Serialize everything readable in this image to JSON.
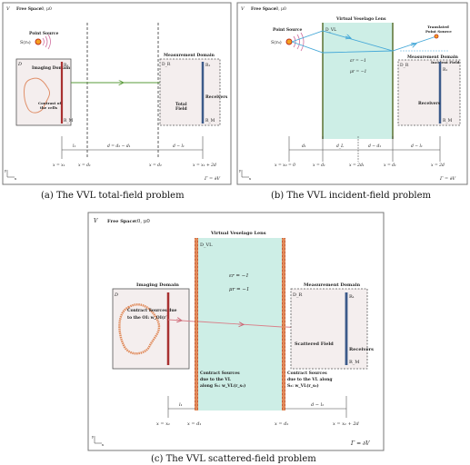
{
  "panel_a": {
    "V": "V",
    "free_space": "Free Space",
    "medium": "ε0, μ0",
    "point_source_title": "Point Source",
    "point_source_label": "S(r₀)",
    "D": "D",
    "imaging_domain": "Imaging Domain",
    "contrast_1": "Contrast of",
    "contrast_2": "the cells",
    "r1": "R₁",
    "rM": "R_M",
    "DR": "D_R",
    "total_1": "Total",
    "total_2": "Field",
    "measurement_domain": "Measurement Domain",
    "R1b": "R₁",
    "receivers": "Receivers",
    "RMb": "R_M",
    "l1": "l₁",
    "d_expr": "d = d₂ − d₁",
    "dl_expr": "d − l₁",
    "x1": "x = x₁",
    "xd1": "x = d₁",
    "xd2": "x = d₂",
    "xx1": "x = x₁ + 2d",
    "gamma": "Γ = ∂V",
    "axis_y": "y",
    "axis_x": "x",
    "caption": "(a) The VVL total-field problem"
  },
  "panel_b": {
    "V": "V",
    "free_space": "Free Space",
    "medium": "ε0, μ0",
    "point_source_title": "Point Source",
    "point_source_label": "S(r₀)",
    "lens_title": "Virtual Veselago Lens",
    "DVL": "D_VL",
    "eps": "εr = −1",
    "mu": "μr = −1",
    "translated_1": "Translated",
    "translated_2": "Point Source",
    "incident_field": "Incident Field",
    "DR": "D_R",
    "measurement_domain": "Measurement Domain",
    "R1": "R₁",
    "receivers": "Receivers",
    "RM": "R_M",
    "d1": "d₁",
    "dL": "d_L",
    "dd": "d − d₁",
    "dl": "d − l₁",
    "x0": "x = x₀ = 0",
    "xd1": "x = d₁",
    "x2d1": "x = 2d₁",
    "xd": "x = d₁",
    "x2d": "x = 2d",
    "gamma": "Γ = ∂V",
    "axis_y": "y",
    "axis_x": "x",
    "caption": "(b) The VVL incident-field problem"
  },
  "panel_c": {
    "V": "V",
    "free_space": "Free Space",
    "medium": "ε0, μ0",
    "lens_title": "Virtual Veselago Lens",
    "DVL": "D_VL",
    "eps": "εr = −1",
    "mu": "μr = −1",
    "D": "D",
    "imaging_domain": "Imaging Domain",
    "contrast_1": "Contract Sources due",
    "contrast_2": "to the OI: w_OI(r′)",
    "lens_src_1": "Contract Sources",
    "lens_src_2": "due to the VL",
    "lens_src_3": "along S₁: w_VL(r_s₁)",
    "lens_src_4": "Contract Sources",
    "lens_src_5": "due to the VL along",
    "lens_src_6": "S₂: w_VL(r_s₂)",
    "DR": "D_R",
    "measurement_domain": "Measurement Domain",
    "R1": "R₁",
    "scattered_field": "Scattered Field",
    "receivers": "Receivers",
    "RM": "R_M",
    "l1": "l₁",
    "dl": "d − l₁",
    "x1": "x = x₁",
    "xd1": "x = d₁",
    "xd2": "x = d₁",
    "xx1": "x = x₁ + 2d",
    "gamma": "Γ = ∂V",
    "axis_y": "y",
    "axis_x": "x",
    "caption": "(c) The VVL scattered-field problem"
  },
  "colors": {
    "frame": "#666666",
    "lens": "#cdeee6",
    "lens_edge": "#c8643a",
    "domain_fill": "#f4eeee",
    "contour": "#e08a60",
    "receiver": "#3c5a8a",
    "ray": "#d9808a",
    "ray_blue": "#45a8d8",
    "ray_green": "#5a9b3a"
  }
}
